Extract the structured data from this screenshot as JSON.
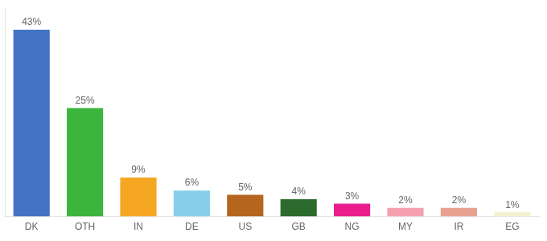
{
  "chart_data": {
    "type": "bar",
    "categories": [
      "DK",
      "OTH",
      "IN",
      "DE",
      "US",
      "GB",
      "NG",
      "MY",
      "IR",
      "EG"
    ],
    "values": [
      43,
      25,
      9,
      6,
      5,
      4,
      3,
      2,
      2,
      1
    ],
    "value_labels": [
      "43%",
      "25%",
      "9%",
      "6%",
      "5%",
      "4%",
      "3%",
      "2%",
      "2%",
      "1%"
    ],
    "colors": [
      "#4472c4",
      "#3cb53c",
      "#f5a623",
      "#87ceeb",
      "#b5651d",
      "#2d6a2d",
      "#e91e8c",
      "#f4a0b0",
      "#e8a090",
      "#f5f0d0"
    ],
    "ylim": [
      0,
      48
    ],
    "data_labels": true,
    "tick_labels": "x",
    "grid": false
  }
}
